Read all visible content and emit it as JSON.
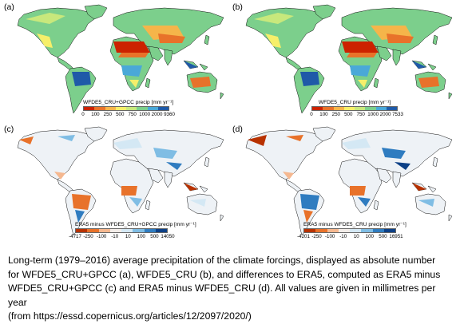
{
  "panels": [
    {
      "label": "(a)",
      "colorbar_title": "WFDE5_CRU+GPCC precip [mm yr⁻¹]",
      "ticks": [
        "0",
        "100",
        "250",
        "500",
        "750",
        "1000",
        "2000",
        "9360"
      ],
      "colors": [
        "#cc2200",
        "#e8722a",
        "#f5b54a",
        "#f6ef6a",
        "#c8e87c",
        "#7ccf8c",
        "#4aa8d8",
        "#1f5aa8"
      ]
    },
    {
      "label": "(b)",
      "colorbar_title": "WFDE5_CRU precip [mm yr⁻¹]",
      "ticks": [
        "0",
        "100",
        "250",
        "500",
        "750",
        "1000",
        "2000",
        "7533"
      ],
      "colors": [
        "#cc2200",
        "#e8722a",
        "#f5b54a",
        "#f6ef6a",
        "#c8e87c",
        "#7ccf8c",
        "#4aa8d8",
        "#1f5aa8"
      ]
    },
    {
      "label": "(c)",
      "colorbar_title": "ERA5 minus WFDE5_CRU+GPCC precip [mm yr⁻¹]",
      "ticks": [
        "-4717",
        "-250",
        "-100",
        "-10",
        "10",
        "100",
        "500",
        "14050"
      ],
      "colors": [
        "#b83200",
        "#e8722a",
        "#f5b890",
        "#f2ece8",
        "#d4e8f4",
        "#7fbde4",
        "#2f7cc0",
        "#0b3f86"
      ]
    },
    {
      "label": "(d)",
      "colorbar_title": "ERA5 minus WFDE5_CRU precip [mm yr⁻¹]",
      "ticks": [
        "-4201",
        "-250",
        "-100",
        "-10",
        "10",
        "100",
        "500",
        "16951"
      ],
      "colors": [
        "#b83200",
        "#e8722a",
        "#f5b890",
        "#f2ece8",
        "#d4e8f4",
        "#7fbde4",
        "#2f7cc0",
        "#0b3f86"
      ]
    }
  ],
  "caption": [
    "Long-term (1979–2016) average precipitation of the climate forcings, displayed as absolute number",
    "for WFDE5_CRU+GPCC (a), WFDE5_CRU (b), and differences to ERA5, computed as ERA5 minus",
    "WFDE5_CRU+GPCC (c) and ERA5 minus WFDE5_CRU (d). All values are given in millimetres per year",
    "(from https://essd.copernicus.org/articles/12/2097/2020/)"
  ]
}
